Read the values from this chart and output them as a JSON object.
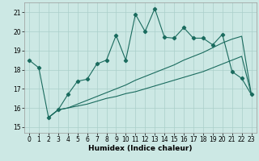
{
  "xlabel": "Humidex (Indice chaleur)",
  "background_color": "#cce8e4",
  "line_color": "#1a6b5e",
  "grid_color": "#aacfca",
  "xlim": [
    -0.5,
    23.5
  ],
  "ylim": [
    14.7,
    21.5
  ],
  "yticks": [
    15,
    16,
    17,
    18,
    19,
    20,
    21
  ],
  "xticks": [
    0,
    1,
    2,
    3,
    4,
    5,
    6,
    7,
    8,
    9,
    10,
    11,
    12,
    13,
    14,
    15,
    16,
    17,
    18,
    19,
    20,
    21,
    22,
    23
  ],
  "line1_x": [
    0,
    1,
    2,
    3,
    4,
    5,
    6,
    7,
    8,
    9,
    10,
    11,
    12,
    13,
    14,
    15,
    16,
    17,
    18,
    19,
    20,
    21,
    22,
    23
  ],
  "line1_y": [
    18.5,
    18.1,
    15.5,
    15.9,
    16.7,
    17.4,
    17.5,
    18.3,
    18.5,
    19.8,
    18.5,
    20.9,
    20.0,
    21.2,
    19.7,
    19.65,
    20.2,
    19.65,
    19.65,
    19.3,
    19.85,
    17.9,
    17.55,
    16.7
  ],
  "line2_x": [
    2,
    3,
    4,
    5,
    6,
    7,
    8,
    9,
    10,
    11,
    12,
    13,
    14,
    15,
    16,
    17,
    18,
    19,
    20,
    21,
    22,
    23
  ],
  "line2_y": [
    15.5,
    15.9,
    16.0,
    16.1,
    16.2,
    16.35,
    16.5,
    16.6,
    16.75,
    16.85,
    17.0,
    17.15,
    17.3,
    17.45,
    17.6,
    17.75,
    17.9,
    18.1,
    18.3,
    18.5,
    18.7,
    16.7
  ],
  "line3_x": [
    2,
    3,
    4,
    5,
    6,
    7,
    8,
    9,
    10,
    11,
    12,
    13,
    14,
    15,
    16,
    17,
    18,
    19,
    20,
    21,
    22,
    23
  ],
  "line3_y": [
    15.5,
    15.9,
    16.0,
    16.2,
    16.4,
    16.6,
    16.8,
    17.0,
    17.2,
    17.45,
    17.65,
    17.85,
    18.05,
    18.25,
    18.5,
    18.7,
    18.9,
    19.15,
    19.4,
    19.6,
    19.75,
    16.7
  ]
}
